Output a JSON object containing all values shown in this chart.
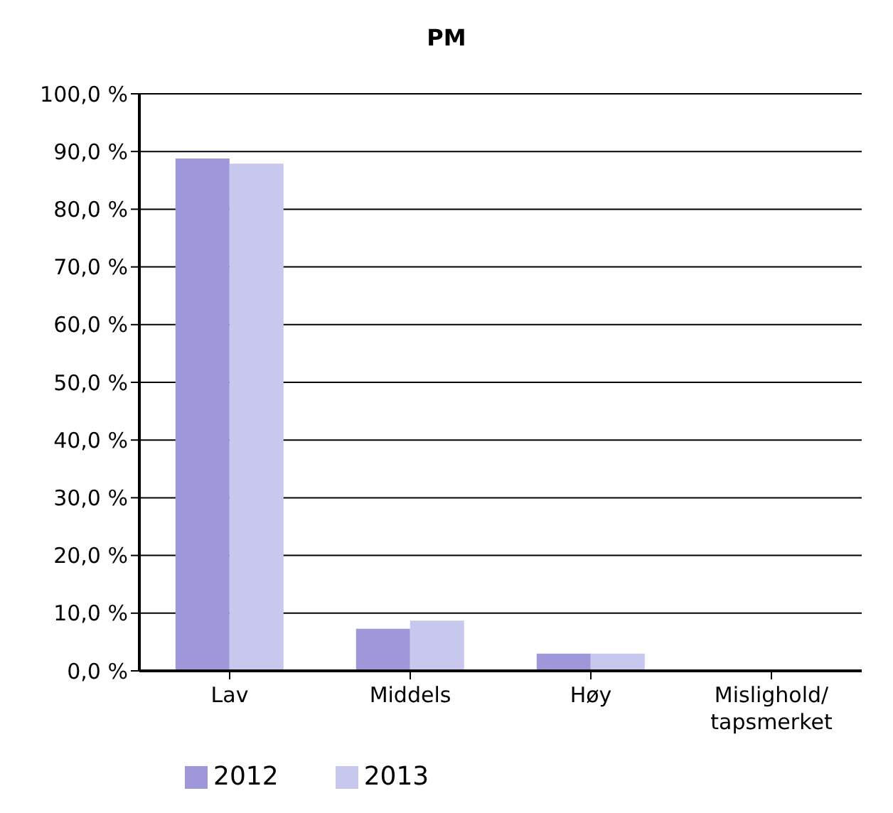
{
  "chart_data": {
    "type": "bar",
    "title": "PM",
    "categories": [
      "Lav",
      "Middels",
      "Høy",
      "Mislighold/ tapsmerket"
    ],
    "series": [
      {
        "name": "2012",
        "color": "#9e97d9",
        "values": [
          88.8,
          7.3,
          3.0,
          0
        ]
      },
      {
        "name": "2013",
        "color": "#c8c8ee",
        "values": [
          87.9,
          8.7,
          3.0,
          0
        ]
      }
    ],
    "ylim": [
      0,
      100
    ],
    "yticks": [
      {
        "value": 0,
        "label": "0,0 %"
      },
      {
        "value": 10,
        "label": "10,0 %"
      },
      {
        "value": 20,
        "label": "20,0 %"
      },
      {
        "value": 30,
        "label": "30,0 %"
      },
      {
        "value": 40,
        "label": "40,0 %"
      },
      {
        "value": 50,
        "label": "50,0 %"
      },
      {
        "value": 60,
        "label": "60,0 %"
      },
      {
        "value": 70,
        "label": "70,0 %"
      },
      {
        "value": 80,
        "label": "80,0 %"
      },
      {
        "value": 90,
        "label": "90,0 %"
      },
      {
        "value": 100,
        "label": "100,0 %"
      }
    ],
    "grid": "y",
    "legend": "bottom left"
  }
}
